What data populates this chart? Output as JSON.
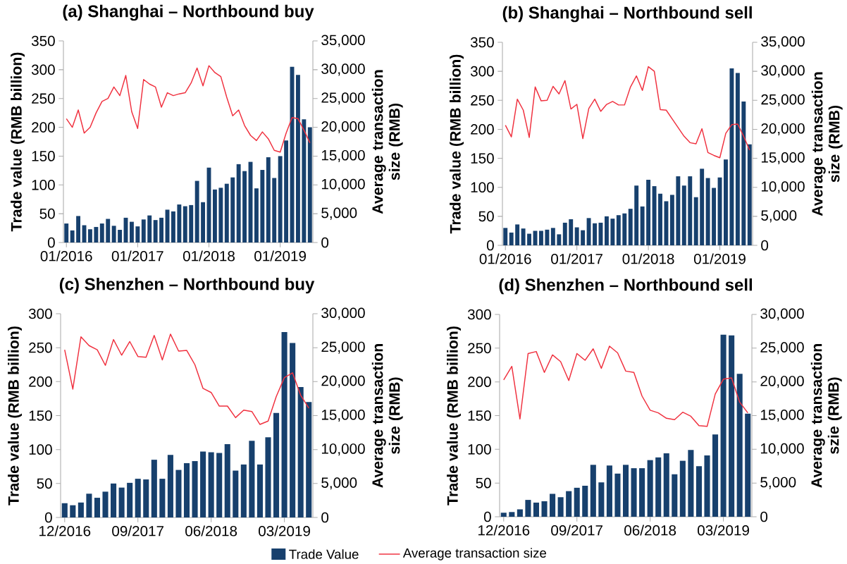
{
  "chart_data": [
    {
      "type": "bar",
      "title": "(a) Shanghai – Northbound buy",
      "ylabel": "Trade value (RMB billion)",
      "y2label": "Average transaction size (RMB)",
      "categories": [
        "01/2016",
        null,
        null,
        null,
        null,
        null,
        null,
        null,
        null,
        null,
        null,
        null,
        "01/2017",
        null,
        null,
        null,
        null,
        null,
        null,
        null,
        null,
        null,
        null,
        null,
        "01/2018",
        null,
        null,
        null,
        null,
        null,
        null,
        null,
        null,
        null,
        null,
        null,
        "01/2019",
        null,
        null,
        null,
        null,
        null
      ],
      "ylim": [
        0,
        350
      ],
      "yticks": [
        0,
        50,
        100,
        150,
        200,
        250,
        300,
        350
      ],
      "y2lim": [
        0,
        35000
      ],
      "y2ticks": [
        0,
        {
          "value": 5000,
          "label": "5,000"
        },
        {
          "value": 10000,
          "label": "10,000"
        },
        {
          "value": 15000,
          "label": "15,000"
        },
        {
          "value": 20000,
          "label": "20,000"
        },
        {
          "value": 25000,
          "label": "25,000"
        },
        {
          "value": 30000,
          "label": "30,000"
        },
        {
          "value": 35000,
          "label": "35,000"
        }
      ],
      "series": [
        {
          "color": "#17406d",
          "values": [
            33,
            21,
            46,
            30,
            23,
            27,
            33,
            41,
            29,
            22,
            43,
            36,
            28,
            40,
            47,
            39,
            43,
            57,
            54,
            66,
            63,
            65,
            107,
            70,
            130,
            92,
            95,
            102,
            113,
            136,
            124,
            140,
            94,
            126,
            148,
            112,
            150,
            177,
            305,
            291,
            214,
            200
          ]
        },
        {
          "type": "line",
          "axis": "y2",
          "color": "#f0313f",
          "values": [
            21500,
            20000,
            23000,
            19000,
            20000,
            22500,
            24500,
            25000,
            27000,
            25500,
            29000,
            22700,
            19800,
            28300,
            27500,
            27000,
            23500,
            26000,
            25500,
            25800,
            26000,
            27700,
            30300,
            27200,
            30700,
            29500,
            28800,
            25200,
            22000,
            23000,
            20300,
            18600,
            17700,
            19200,
            18000,
            16000,
            15700,
            19000,
            21700,
            21500,
            19500,
            17300
          ]
        }
      ]
    },
    {
      "type": "bar",
      "title": "(b) Shanghai – Northbound sell",
      "ylabel": "Trade value (RMB billion)",
      "y2label": "Average transaction size (RMB)",
      "categories": [
        "01/2016",
        null,
        null,
        null,
        null,
        null,
        null,
        null,
        null,
        null,
        null,
        null,
        "01/2017",
        null,
        null,
        null,
        null,
        null,
        null,
        null,
        null,
        null,
        null,
        null,
        "01/2018",
        null,
        null,
        null,
        null,
        null,
        null,
        null,
        null,
        null,
        null,
        null,
        "01/2019",
        null,
        null,
        null,
        null,
        null
      ],
      "ylim": [
        0,
        350
      ],
      "yticks": [
        0,
        50,
        100,
        150,
        200,
        250,
        300,
        350
      ],
      "y2lim": [
        0,
        35000
      ],
      "y2ticks": [
        0,
        {
          "value": 5000,
          "label": "5,000"
        },
        {
          "value": 10000,
          "label": "10,000"
        },
        {
          "value": 15000,
          "label": "15,000"
        },
        {
          "value": 20000,
          "label": "20,000"
        },
        {
          "value": 25000,
          "label": "25,000"
        },
        {
          "value": 30000,
          "label": "30,000"
        },
        {
          "value": 35000,
          "label": "35,000"
        }
      ],
      "series": [
        {
          "color": "#17406d",
          "values": [
            30,
            22,
            36,
            29,
            20,
            25,
            25,
            27,
            30,
            19,
            39,
            45,
            31,
            26,
            47,
            38,
            39,
            50,
            46,
            52,
            55,
            63,
            103,
            67,
            113,
            102,
            89,
            76,
            87,
            119,
            103,
            119,
            83,
            132,
            116,
            99,
            117,
            148,
            305,
            297,
            248,
            174
          ]
        },
        {
          "type": "line",
          "axis": "y2",
          "color": "#f0313f",
          "values": [
            20700,
            18700,
            25200,
            23300,
            18600,
            27300,
            24900,
            25000,
            27400,
            26100,
            28400,
            23500,
            24300,
            18400,
            23600,
            25200,
            23100,
            24300,
            24800,
            24200,
            24200,
            27300,
            29200,
            26700,
            30800,
            30000,
            23400,
            23300,
            21800,
            20300,
            18800,
            17700,
            17500,
            20100,
            16000,
            15500,
            15100,
            19300,
            20800,
            20900,
            18800,
            16400
          ]
        }
      ]
    },
    {
      "type": "bar",
      "title": "(c) Shenzhen – Northbound buy",
      "ylabel": "Trade value (RMB billion)",
      "y2label": "Average transaction size (RMB)",
      "categories": [
        "12/2016",
        null,
        null,
        null,
        null,
        null,
        null,
        null,
        null,
        "09/2017",
        null,
        null,
        null,
        null,
        null,
        null,
        null,
        null,
        "06/2018",
        null,
        null,
        null,
        null,
        null,
        null,
        null,
        null,
        "03/2019",
        null,
        null,
        null
      ],
      "ylim": [
        0,
        300
      ],
      "yticks": [
        0,
        50,
        100,
        150,
        200,
        250,
        300
      ],
      "y2lim": [
        0,
        30000
      ],
      "y2ticks": [
        0,
        {
          "value": 5000,
          "label": "5,000"
        },
        {
          "value": 10000,
          "label": "10,000"
        },
        {
          "value": 15000,
          "label": "15,000"
        },
        {
          "value": 20000,
          "label": "20,000"
        },
        {
          "value": 25000,
          "label": "25,000"
        },
        {
          "value": 30000,
          "label": "30,000"
        }
      ],
      "series": [
        {
          "color": "#17406d",
          "values": [
            21,
            18,
            22,
            35,
            29,
            38,
            50,
            44,
            51,
            57,
            56,
            85,
            57,
            92,
            70,
            80,
            83,
            97,
            96,
            95,
            108,
            69,
            78,
            113,
            78,
            118,
            154,
            273,
            257,
            192,
            170
          ]
        },
        {
          "type": "line",
          "axis": "y2",
          "color": "#f0313f",
          "values": [
            24700,
            18900,
            26600,
            25300,
            24700,
            22400,
            26200,
            23900,
            25900,
            23700,
            23600,
            26800,
            23200,
            27000,
            24500,
            24600,
            22500,
            19000,
            18400,
            16400,
            16400,
            14700,
            15800,
            15600,
            13700,
            14200,
            17800,
            20600,
            21300,
            18000,
            16100
          ]
        }
      ]
    },
    {
      "type": "bar",
      "title": "(d) Shenzhen – Northbound sell",
      "ylabel": "Trade value (RMB billion)",
      "y2label": "Average transaction szie (RMB)",
      "legend": "bottom",
      "categories": [
        "12/2016",
        null,
        null,
        null,
        null,
        null,
        null,
        null,
        null,
        "09/2017",
        null,
        null,
        null,
        null,
        null,
        null,
        null,
        null,
        "06/2018",
        null,
        null,
        null,
        null,
        null,
        null,
        null,
        null,
        "03/2019",
        null,
        null,
        null
      ],
      "ylim": [
        0,
        300
      ],
      "yticks": [
        0,
        50,
        100,
        150,
        200,
        250,
        300
      ],
      "y2lim": [
        0,
        30000
      ],
      "y2ticks": [
        0,
        {
          "value": 5000,
          "label": "5,000"
        },
        {
          "value": 10000,
          "label": "10,000"
        },
        {
          "value": 15000,
          "label": "15,000"
        },
        {
          "value": 20000,
          "label": "20,000"
        },
        {
          "value": 25000,
          "label": "25,000"
        },
        {
          "value": 30000,
          "label": "30,000"
        }
      ],
      "series": [
        {
          "name": "Trade Value",
          "color": "#17406d",
          "values": [
            6,
            7,
            11,
            25,
            21,
            23,
            34,
            29,
            38,
            43,
            46,
            77,
            51,
            76,
            64,
            77,
            72,
            72,
            84,
            88,
            94,
            63,
            83,
            99,
            75,
            91,
            122,
            270,
            269,
            212,
            153
          ]
        },
        {
          "type": "line",
          "name": "Average transaction size",
          "axis": "y2",
          "color": "#f0313f",
          "values": [
            20300,
            22300,
            14500,
            24200,
            24500,
            21400,
            24000,
            23000,
            20200,
            24200,
            23200,
            24900,
            22000,
            25300,
            24300,
            21600,
            21400,
            17900,
            15800,
            15400,
            14600,
            14400,
            15500,
            14900,
            13500,
            13400,
            18200,
            20400,
            20600,
            17000,
            15400
          ]
        }
      ]
    }
  ]
}
